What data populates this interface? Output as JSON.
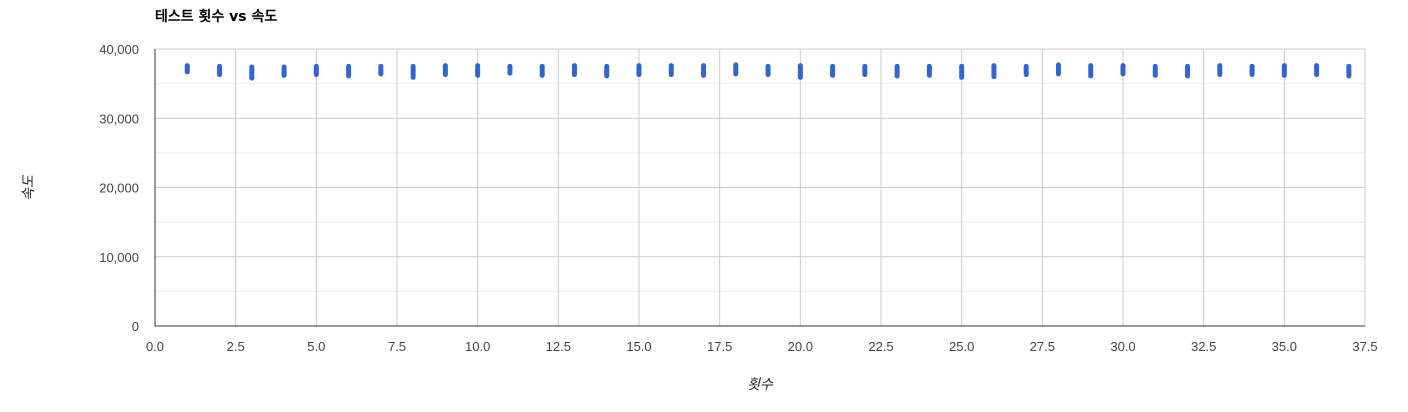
{
  "chart_data": {
    "type": "scatter",
    "title": "테스트 횟수 vs 속도",
    "xlabel": "횟수",
    "ylabel": "속도",
    "xlim": [
      0,
      37.5
    ],
    "ylim": [
      0,
      40000
    ],
    "x_ticks": [
      "0.0",
      "2.5",
      "5.0",
      "7.5",
      "10.0",
      "12.5",
      "15.0",
      "17.5",
      "20.0",
      "22.5",
      "25.0",
      "27.5",
      "30.0",
      "32.5",
      "35.0",
      "37.5"
    ],
    "y_ticks": [
      "0",
      "10,000",
      "20,000",
      "30,000",
      "40,000"
    ],
    "grid": true,
    "marker_color": "#3366cc",
    "series": [
      {
        "points": [
          {
            "x": 1,
            "y_min": 36700,
            "y_max": 37600
          },
          {
            "x": 2,
            "y_min": 36300,
            "y_max": 37500
          },
          {
            "x": 3,
            "y_min": 35800,
            "y_max": 37400
          },
          {
            "x": 4,
            "y_min": 36200,
            "y_max": 37400
          },
          {
            "x": 5,
            "y_min": 36300,
            "y_max": 37500
          },
          {
            "x": 6,
            "y_min": 36100,
            "y_max": 37500
          },
          {
            "x": 7,
            "y_min": 36400,
            "y_max": 37500
          },
          {
            "x": 8,
            "y_min": 35900,
            "y_max": 37500
          },
          {
            "x": 9,
            "y_min": 36300,
            "y_max": 37600
          },
          {
            "x": 10,
            "y_min": 36200,
            "y_max": 37600
          },
          {
            "x": 11,
            "y_min": 36500,
            "y_max": 37500
          },
          {
            "x": 12,
            "y_min": 36200,
            "y_max": 37500
          },
          {
            "x": 13,
            "y_min": 36300,
            "y_max": 37600
          },
          {
            "x": 14,
            "y_min": 36100,
            "y_max": 37500
          },
          {
            "x": 15,
            "y_min": 36300,
            "y_max": 37600
          },
          {
            "x": 16,
            "y_min": 36300,
            "y_max": 37600
          },
          {
            "x": 17,
            "y_min": 36200,
            "y_max": 37600
          },
          {
            "x": 18,
            "y_min": 36400,
            "y_max": 37700
          },
          {
            "x": 19,
            "y_min": 36300,
            "y_max": 37500
          },
          {
            "x": 20,
            "y_min": 35900,
            "y_max": 37600
          },
          {
            "x": 21,
            "y_min": 36200,
            "y_max": 37500
          },
          {
            "x": 22,
            "y_min": 36300,
            "y_max": 37500
          },
          {
            "x": 23,
            "y_min": 36100,
            "y_max": 37500
          },
          {
            "x": 24,
            "y_min": 36200,
            "y_max": 37500
          },
          {
            "x": 25,
            "y_min": 35900,
            "y_max": 37500
          },
          {
            "x": 26,
            "y_min": 36000,
            "y_max": 37600
          },
          {
            "x": 27,
            "y_min": 36300,
            "y_max": 37500
          },
          {
            "x": 28,
            "y_min": 36400,
            "y_max": 37700
          },
          {
            "x": 29,
            "y_min": 36100,
            "y_max": 37600
          },
          {
            "x": 30,
            "y_min": 36400,
            "y_max": 37600
          },
          {
            "x": 31,
            "y_min": 36200,
            "y_max": 37500
          },
          {
            "x": 32,
            "y_min": 36100,
            "y_max": 37500
          },
          {
            "x": 33,
            "y_min": 36300,
            "y_max": 37600
          },
          {
            "x": 34,
            "y_min": 36300,
            "y_max": 37500
          },
          {
            "x": 35,
            "y_min": 36200,
            "y_max": 37600
          },
          {
            "x": 36,
            "y_min": 36300,
            "y_max": 37600
          },
          {
            "x": 37,
            "y_min": 36100,
            "y_max": 37500
          }
        ]
      }
    ]
  }
}
